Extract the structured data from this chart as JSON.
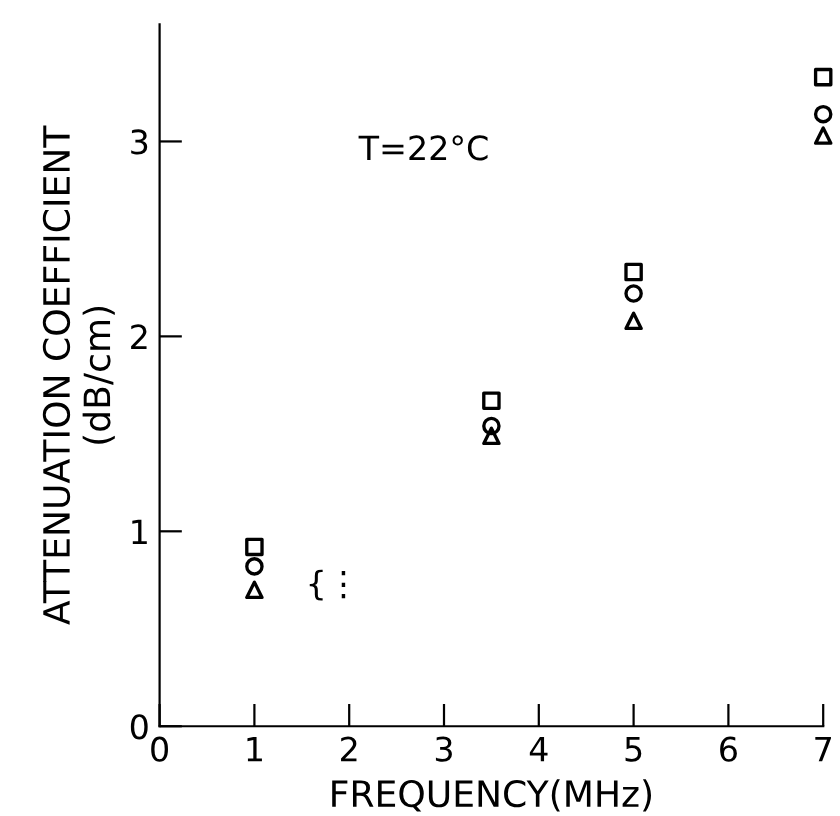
{
  "chart_data": {
    "type": "scatter",
    "xlabel": "FREQUENCY(MHz)",
    "ylabel": "ATTENUATION COEFFICIENT\n(dB/cm)",
    "x": [
      1,
      3.5,
      5,
      7
    ],
    "series": [
      {
        "color": "#000000",
        "marker": "square",
        "values": [
          0.92,
          1.67,
          2.33,
          3.33
        ]
      },
      {
        "color": "#000000",
        "marker": "circle",
        "values": [
          0.82,
          1.54,
          2.22,
          3.14
        ]
      },
      {
        "color": "#000000",
        "marker": "triangle",
        "values": [
          0.7,
          1.49,
          2.08,
          3.03
        ]
      }
    ],
    "annotations": [
      "T=22°C",
      "{⋮"
    ],
    "xlim": [
      0,
      7
    ],
    "xticks": [
      0,
      1,
      2,
      3,
      4,
      5,
      6,
      7
    ],
    "ylim": [
      0,
      3.6
    ],
    "yticks": [
      0,
      1,
      2,
      3
    ],
    "grid": false,
    "legend": false
  }
}
